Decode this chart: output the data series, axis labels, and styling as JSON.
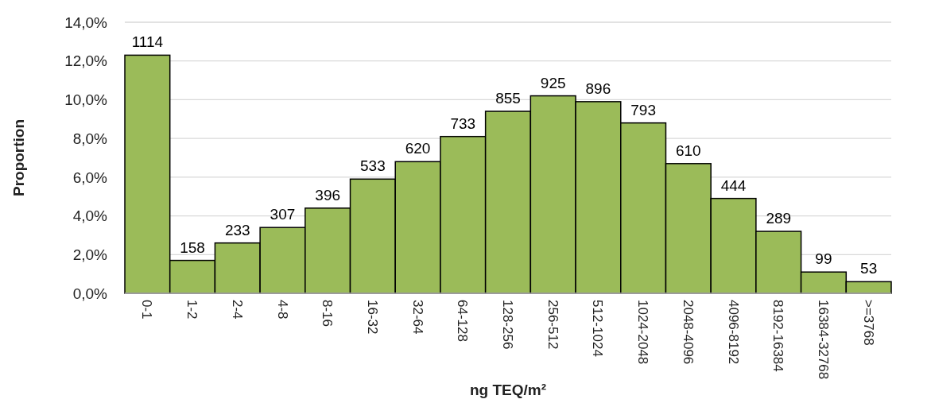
{
  "chart_data": {
    "type": "bar",
    "xlabel": "ng TEQ/m²",
    "ylabel": "Proportion",
    "categories": [
      "0-1",
      "1-2",
      "2-4",
      "4-8",
      "8-16",
      "16-32",
      "32-64",
      "64-128",
      "128-256",
      "256-512",
      "512-1024",
      "1024-2048",
      "2048-4096",
      "4096-8192",
      "8192-16384",
      "16384-32768",
      ">=3768"
    ],
    "values": [
      12.3,
      1.7,
      2.6,
      3.4,
      4.4,
      5.9,
      6.8,
      8.1,
      9.4,
      10.2,
      9.9,
      8.8,
      6.7,
      4.9,
      3.2,
      1.1,
      0.6
    ],
    "annotations": [
      {
        "text": "1114",
        "x": "0-1",
        "y": 12.3
      },
      {
        "text": "158",
        "x": "1-2",
        "y": 1.7
      },
      {
        "text": "233",
        "x": "2-4",
        "y": 2.6
      },
      {
        "text": "307",
        "x": "4-8",
        "y": 3.4
      },
      {
        "text": "396",
        "x": "8-16",
        "y": 4.4
      },
      {
        "text": "533",
        "x": "16-32",
        "y": 5.9
      },
      {
        "text": "620",
        "x": "32-64",
        "y": 6.8
      },
      {
        "text": "733",
        "x": "64-128",
        "y": 8.1
      },
      {
        "text": "855",
        "x": "128-256",
        "y": 9.4
      },
      {
        "text": "925",
        "x": "256-512",
        "y": 10.2
      },
      {
        "text": "896",
        "x": "512-1024",
        "y": 9.9
      },
      {
        "text": "793",
        "x": "1024-2048",
        "y": 8.8
      },
      {
        "text": "610",
        "x": "2048-4096",
        "y": 6.7
      },
      {
        "text": "444",
        "x": "4096-8192",
        "y": 4.9
      },
      {
        "text": "289",
        "x": "8192-16384",
        "y": 3.2
      },
      {
        "text": "99",
        "x": "16384-32768",
        "y": 1.1
      },
      {
        "text": "53",
        "x": ">=3768",
        "y": 0.6
      }
    ],
    "color": "#9bbb59",
    "ylim": [
      0,
      14
    ],
    "yticks": [
      {
        "value": 0,
        "label": "0,0%"
      },
      {
        "value": 2,
        "label": "2,0%"
      },
      {
        "value": 4,
        "label": "4,0%"
      },
      {
        "value": 6,
        "label": "6,0%"
      },
      {
        "value": 8,
        "label": "8,0%"
      },
      {
        "value": 10,
        "label": "10,0%"
      },
      {
        "value": 12,
        "label": "12,0%"
      },
      {
        "value": 14,
        "label": "14,0%"
      }
    ],
    "grid": "y"
  }
}
